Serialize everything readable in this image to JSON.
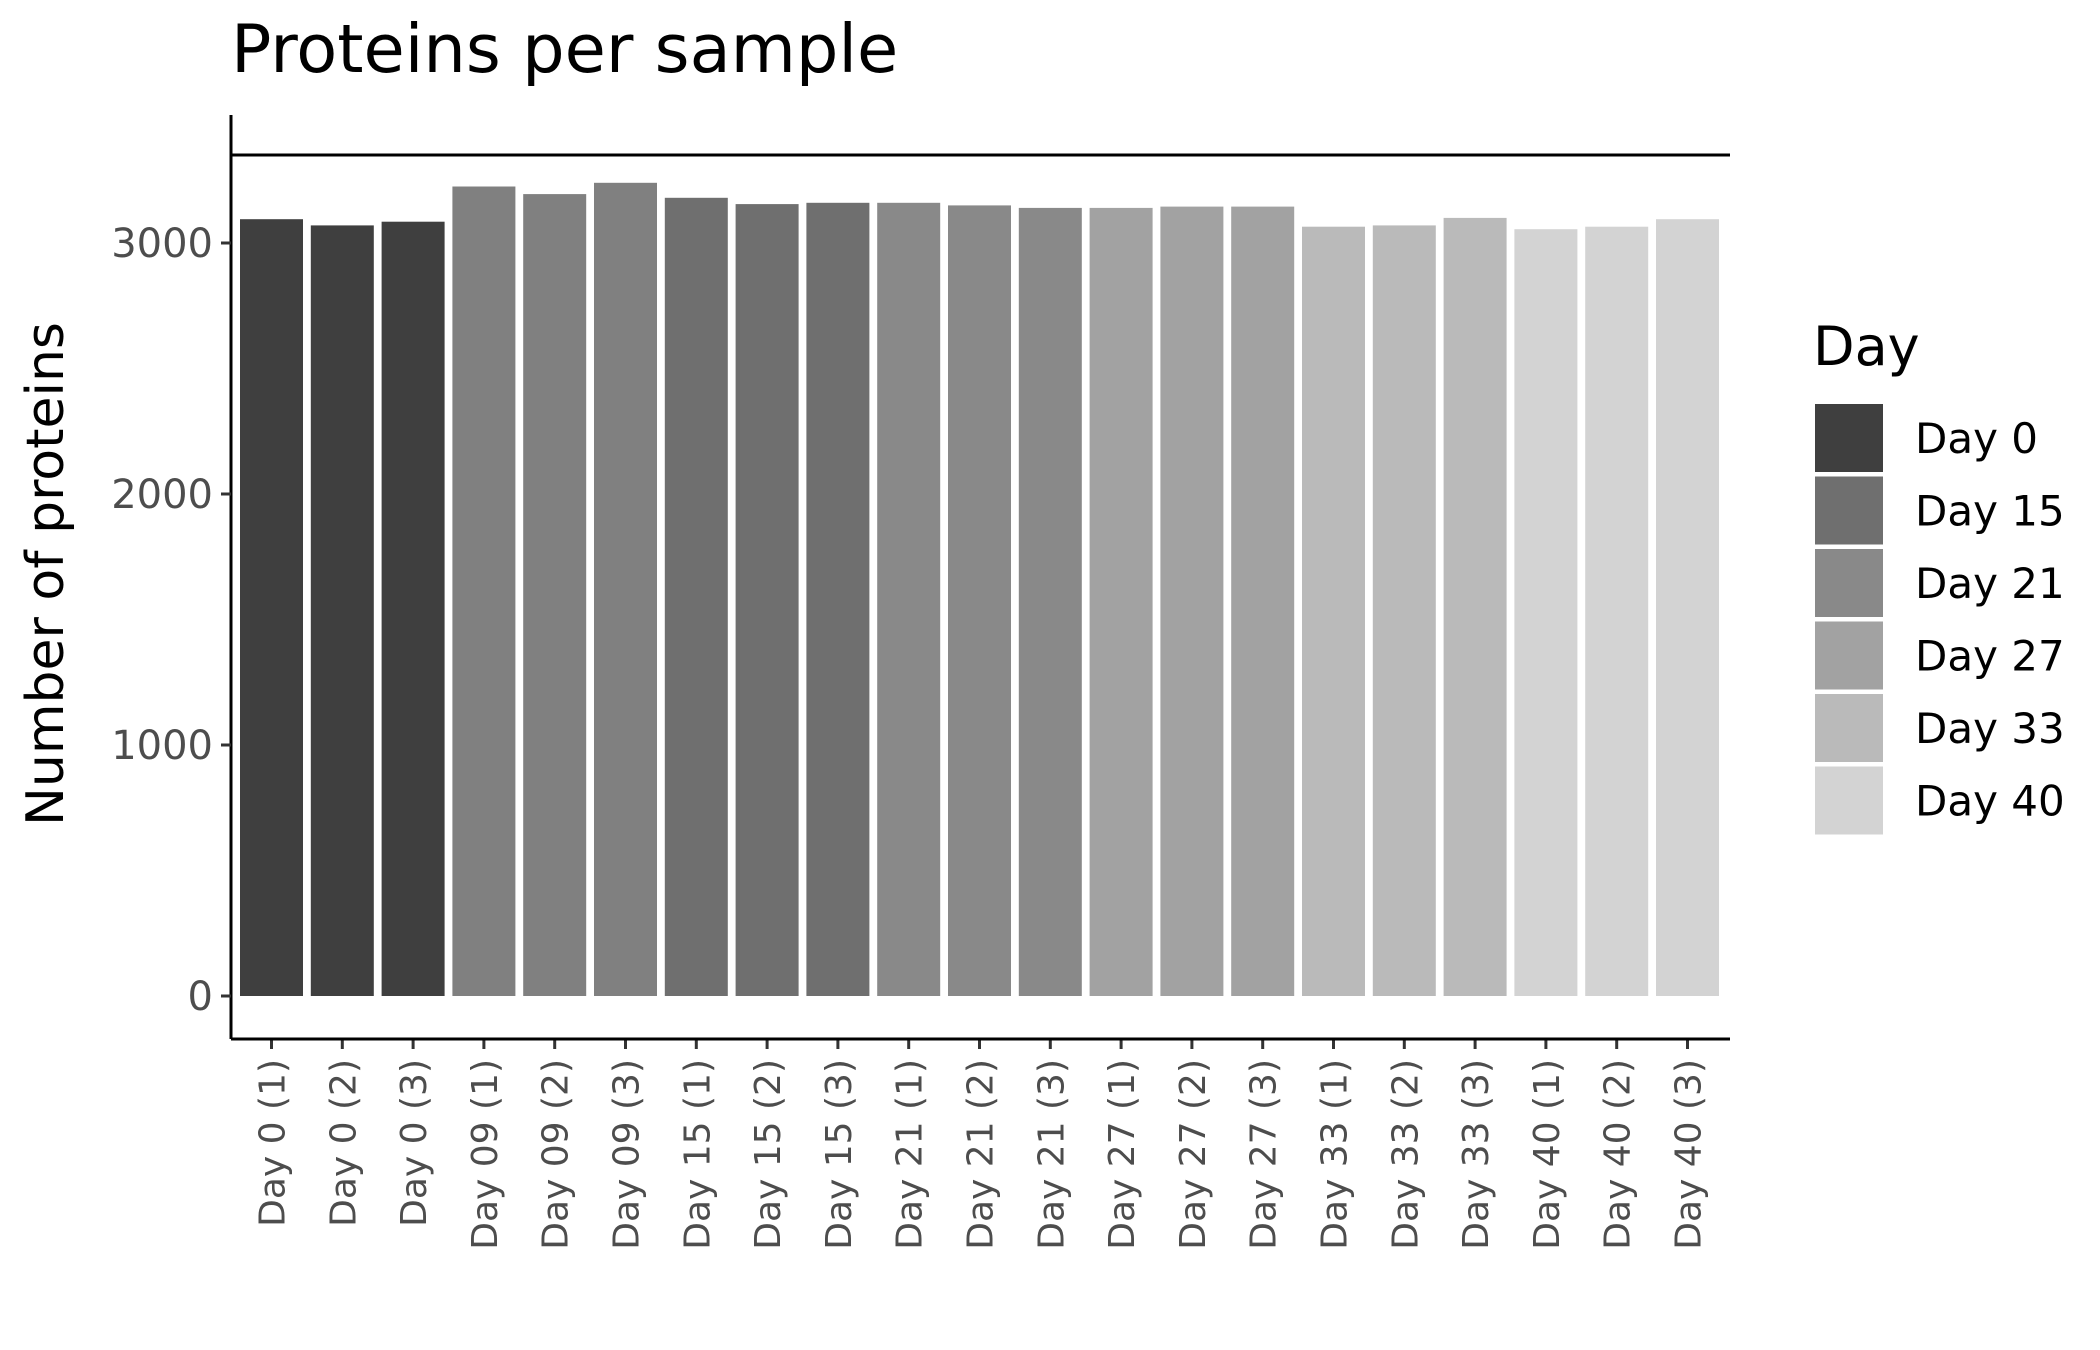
{
  "chart_data": {
    "type": "bar",
    "title": "Proteins per sample",
    "xlabel": "",
    "ylabel": "Number of proteins",
    "ylim": [
      0,
      3500
    ],
    "yticks": [
      0,
      1000,
      2000,
      3000
    ],
    "ytick_labels": [
      "0",
      "1000",
      "2000",
      "3000"
    ],
    "reference_line_y": 3330,
    "grid": false,
    "categories": [
      "Day 0 (1)",
      "Day 0 (2)",
      "Day 0 (3)",
      "Day 09 (1)",
      "Day 09 (2)",
      "Day 09 (3)",
      "Day 15 (1)",
      "Day 15 (2)",
      "Day 15 (3)",
      "Day 21 (1)",
      "Day 21 (2)",
      "Day 21 (3)",
      "Day 27 (1)",
      "Day 27 (2)",
      "Day 27 (3)",
      "Day 33 (1)",
      "Day 33 (2)",
      "Day 33 (3)",
      "Day 40 (1)",
      "Day 40 (2)",
      "Day 40 (3)"
    ],
    "values": [
      3095,
      3070,
      3085,
      3225,
      3195,
      3240,
      3180,
      3155,
      3160,
      3160,
      3150,
      3140,
      3140,
      3145,
      3145,
      3065,
      3070,
      3100,
      3055,
      3065,
      3095
    ],
    "bar_colors": [
      "#3f3f3f",
      "#3f3f3f",
      "#3f3f3f",
      "#808080",
      "#808080",
      "#808080",
      "#6f6f6f",
      "#6f6f6f",
      "#6f6f6f",
      "#898989",
      "#898989",
      "#898989",
      "#a2a2a2",
      "#a2a2a2",
      "#a2a2a2",
      "#bababa",
      "#bababa",
      "#bababa",
      "#d3d3d3",
      "#d3d3d3",
      "#d3d3d3"
    ],
    "legend": {
      "title": "Day",
      "position": "right",
      "items": [
        {
          "label": "Day 0",
          "color": "#3f3f3f"
        },
        {
          "label": "Day 15",
          "color": "#6f6f6f"
        },
        {
          "label": "Day 21",
          "color": "#898989"
        },
        {
          "label": "Day 27",
          "color": "#a2a2a2"
        },
        {
          "label": "Day 33",
          "color": "#bababa"
        },
        {
          "label": "Day 40",
          "color": "#d3d3d3"
        }
      ]
    }
  }
}
